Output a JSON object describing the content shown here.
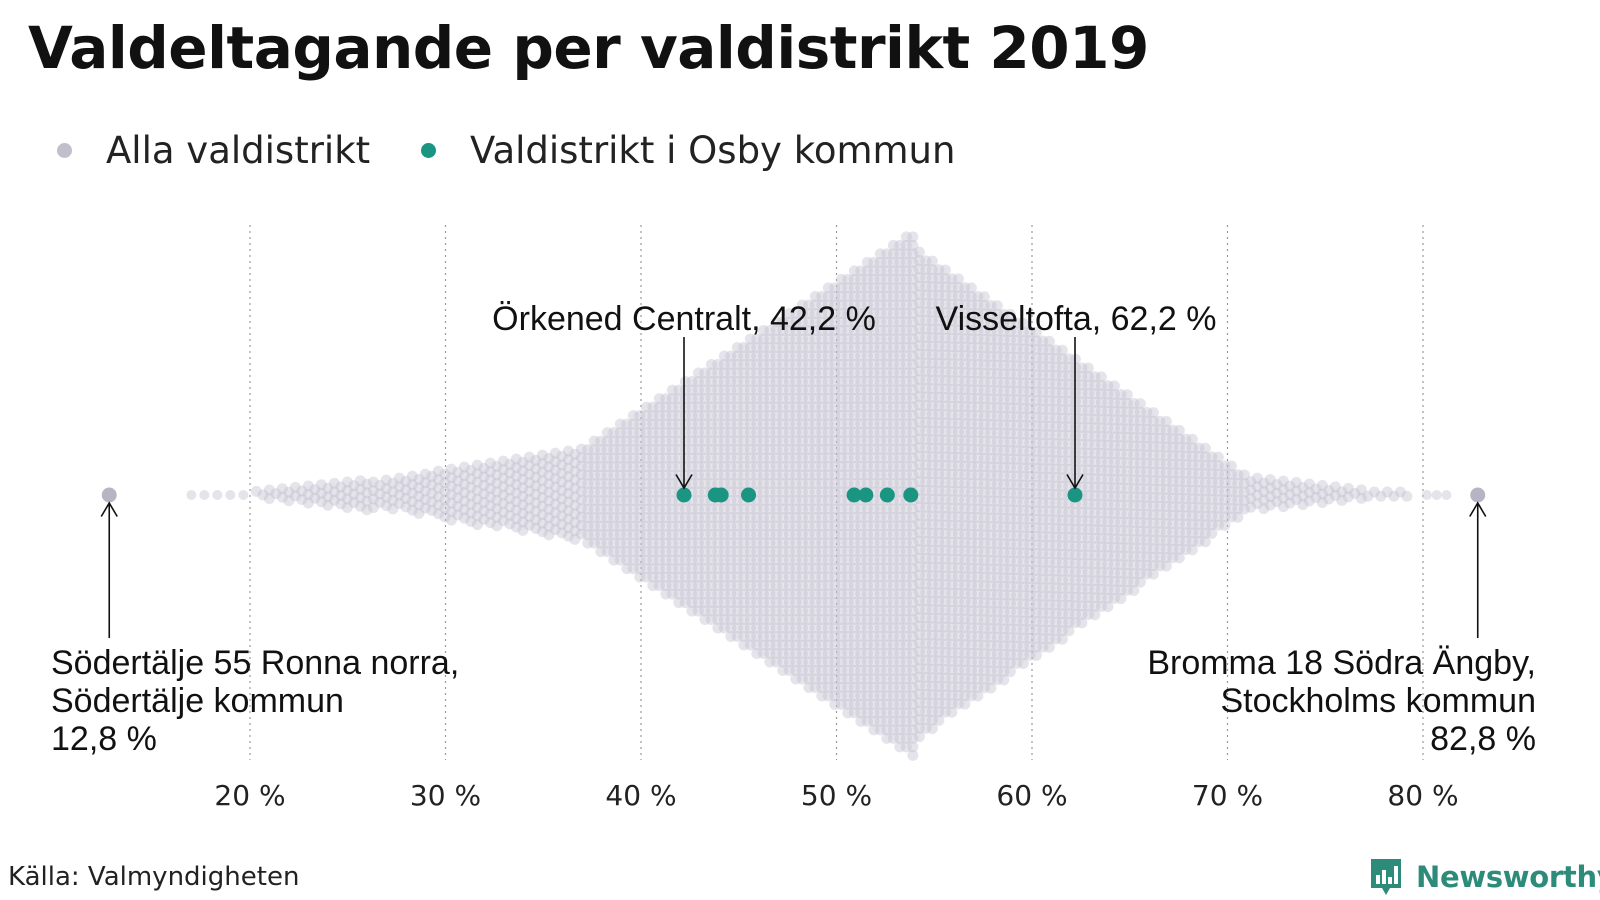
{
  "title": "Valdeltagande per valdistrikt 2019",
  "legend": [
    {
      "label": "Alla valdistrikt",
      "color": "#c1bfcc"
    },
    {
      "label": "Valdistrikt i Osby kommun",
      "color": "#1a9582"
    }
  ],
  "source": "Källa: Valmyndigheten",
  "brand": "Newsworthy",
  "colors": {
    "all_districts": "#c1bfcc",
    "osby": "#1a9582",
    "brand": "#2d8b79"
  },
  "chart_data": {
    "type": "scatter",
    "title": "Valdeltagande per valdistrikt 2019",
    "xlabel": "",
    "ylabel": "",
    "xlim": [
      11,
      83
    ],
    "x_ticks": [
      20,
      30,
      40,
      50,
      60,
      70,
      80
    ],
    "x_tick_labels": [
      "20 %",
      "30 %",
      "40 %",
      "50 %",
      "60 %",
      "70 %",
      "80 %"
    ],
    "grid": "vertical dotted",
    "legend_position": "top-left",
    "series": [
      {
        "name": "Alla valdistrikt",
        "style": "beeswarm",
        "x_range": [
          12.8,
          82.8
        ],
        "extremes": [
          12.8,
          82.8
        ]
      },
      {
        "name": "Valdistrikt i Osby kommun",
        "x": [
          42.2,
          43.8,
          44.1,
          45.5,
          50.9,
          51.5,
          52.6,
          53.8,
          62.2
        ]
      }
    ],
    "annotations": [
      {
        "x": 42.2,
        "lines": [
          "Örkened Centralt, 42,2 %"
        ]
      },
      {
        "x": 62.2,
        "lines": [
          "Visseltofta, 62,2 %"
        ]
      },
      {
        "x": 12.8,
        "lines": [
          "Södertälje 55 Ronna norra,",
          "Södertälje kommun",
          "12,8 %"
        ]
      },
      {
        "x": 82.8,
        "lines": [
          "Bromma 18 Södra Ängby,",
          "Stockholms kommun",
          "82,8 %"
        ]
      }
    ]
  }
}
